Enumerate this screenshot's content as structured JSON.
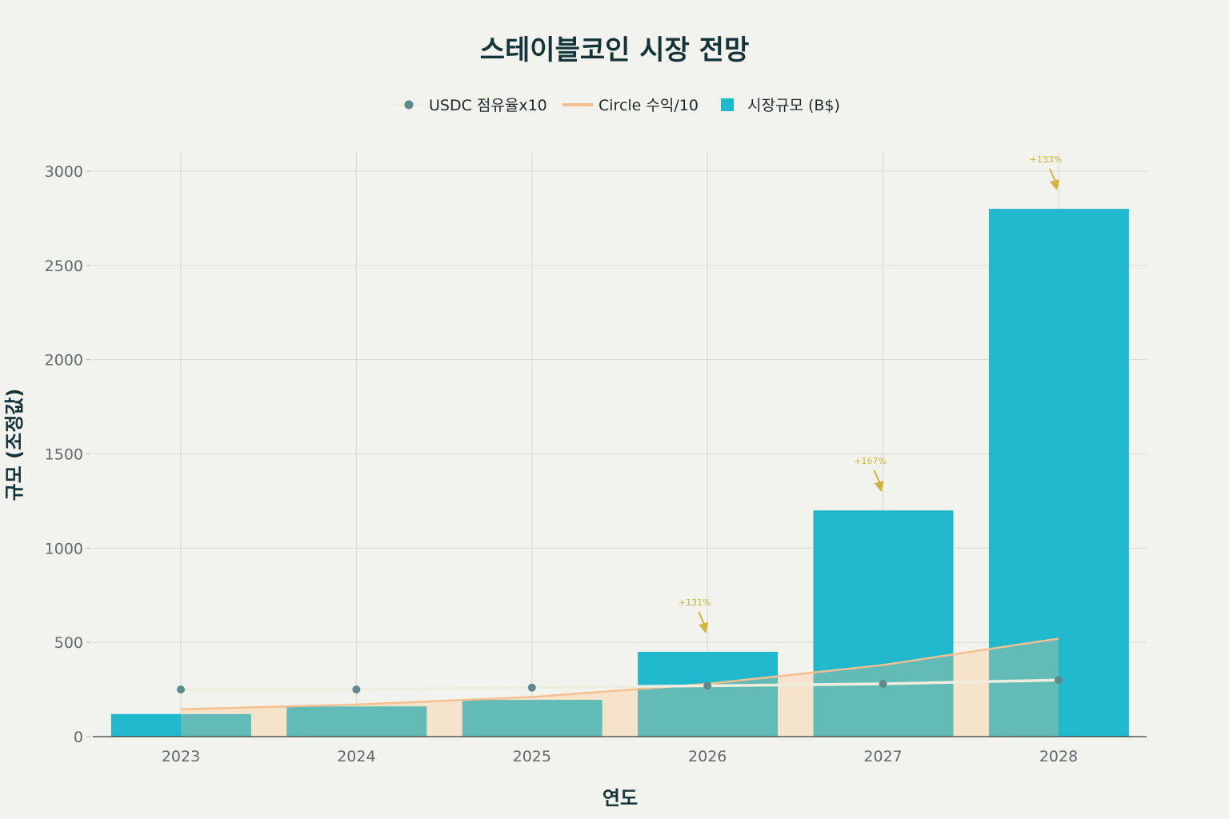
{
  "chart_data": {
    "type": "bar",
    "title": "스테이블코인 시장 전망",
    "xlabel": "연도",
    "ylabel": "규모 (조정값)",
    "categories": [
      "2023",
      "2024",
      "2025",
      "2026",
      "2027",
      "2028"
    ],
    "ylim": [
      0,
      3100
    ],
    "yticks": [
      0,
      500,
      1000,
      1500,
      2000,
      2500,
      3000
    ],
    "grid": true,
    "legend_position": "top-center",
    "series": [
      {
        "name": "USDC 점유율x10",
        "type": "line+markers",
        "color": "#5e8a8c",
        "line_color": "#efeede",
        "values": [
          250,
          250,
          260,
          270,
          280,
          300
        ]
      },
      {
        "name": "Circle 수익/10",
        "type": "area",
        "color": "#f6bf8f",
        "fill_color": "#f6e3cb",
        "values": [
          145,
          170,
          210,
          280,
          380,
          520
        ]
      },
      {
        "name": "시장규모 (B$)",
        "type": "bar",
        "color": "#1fb8cd",
        "values": [
          120,
          160,
          195,
          450,
          1200,
          2800
        ]
      }
    ],
    "annotations": [
      {
        "x": "2026",
        "text": "+131%"
      },
      {
        "x": "2027",
        "text": "+167%"
      },
      {
        "x": "2028",
        "text": "+133%"
      }
    ]
  }
}
